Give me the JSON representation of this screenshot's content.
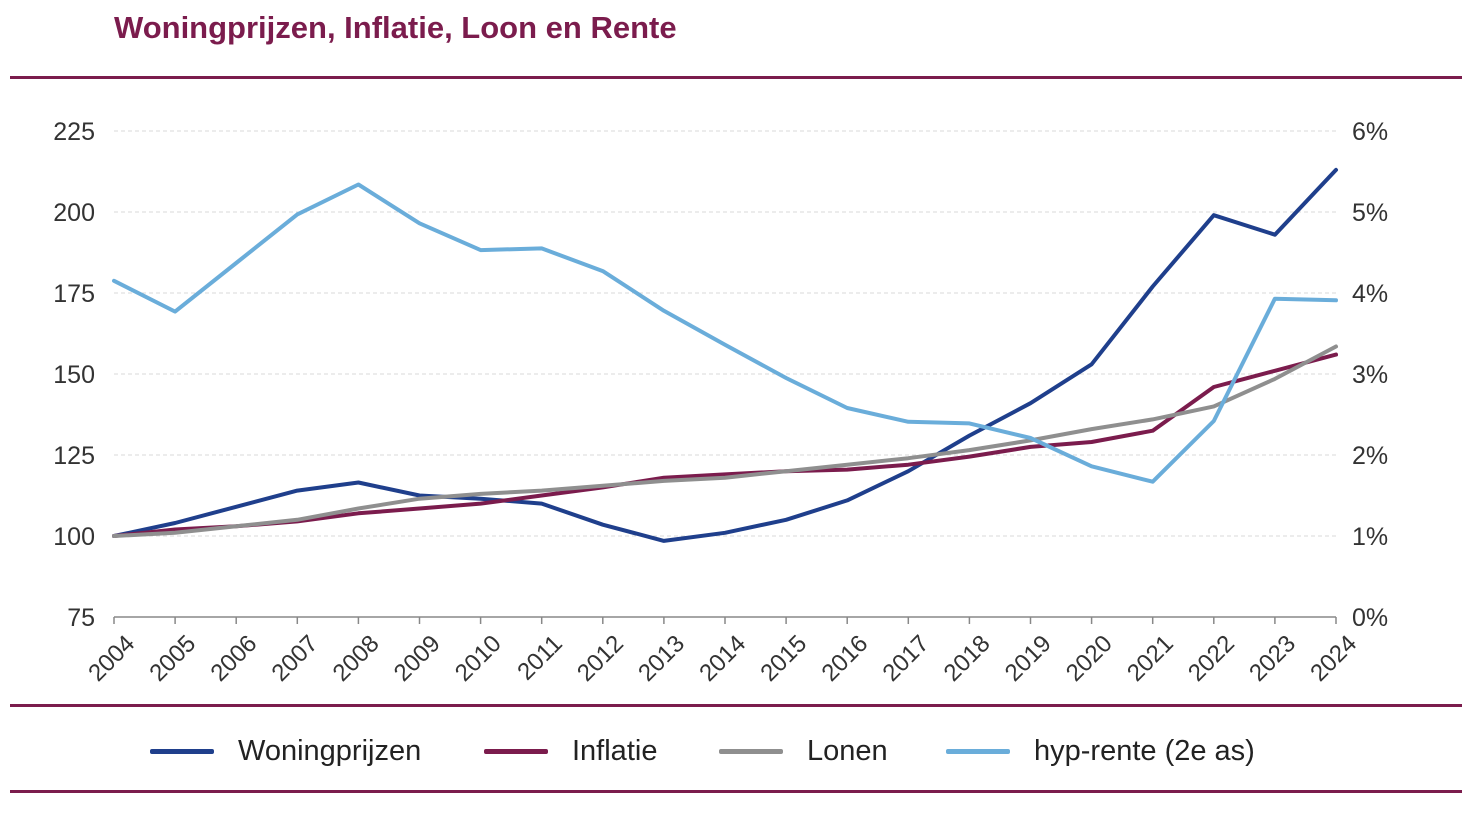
{
  "title": "Woningprijzen, Inflatie, Loon en Rente",
  "chart_data": {
    "type": "line",
    "title": "Woningprijzen, Inflatie, Loon en Rente",
    "x": [
      "2004",
      "2005",
      "2006",
      "2007",
      "2008",
      "2009",
      "2010",
      "2011",
      "2012",
      "2013",
      "2014",
      "2015",
      "2016",
      "2017",
      "2018",
      "2019",
      "2020",
      "2021",
      "2022",
      "2023",
      "2024"
    ],
    "y_left": {
      "min": 75,
      "max": 225,
      "ticks": [
        75,
        100,
        125,
        150,
        175,
        200,
        225
      ]
    },
    "y_right": {
      "min": 0,
      "max": 6,
      "ticks": [
        0,
        1,
        2,
        3,
        4,
        5,
        6
      ],
      "tick_labels": [
        "0%",
        "1%",
        "2%",
        "3%",
        "4%",
        "5%",
        "6%"
      ]
    },
    "grid": true,
    "legend_position": "bottom",
    "series": [
      {
        "name": "Woningprijzen",
        "axis": "left",
        "color": "#1f3f8c",
        "values": [
          100,
          104,
          109,
          114,
          116.5,
          112.5,
          111.5,
          110,
          103.5,
          98.5,
          101,
          105,
          111,
          120,
          131,
          141,
          153,
          177,
          199,
          193,
          213
        ]
      },
      {
        "name": "Inflatie",
        "axis": "left",
        "color": "#7b1c4d",
        "values": [
          100,
          102,
          103,
          104.5,
          107,
          108.5,
          110,
          112.5,
          115,
          118,
          119,
          120,
          120.5,
          122,
          124.5,
          127.5,
          129,
          132.5,
          146,
          151,
          156
        ]
      },
      {
        "name": "Lonen",
        "axis": "left",
        "color": "#8f8f8f",
        "values": [
          100,
          101,
          103,
          105,
          108.5,
          111.5,
          113,
          114,
          115.5,
          117,
          118,
          120,
          122,
          124,
          126.5,
          129.5,
          133,
          136,
          140,
          148.5,
          158.5
        ]
      },
      {
        "name": "hyp-rente (2e as)",
        "axis": "right",
        "color": "#6aadda",
        "values": [
          4.15,
          3.77,
          4.37,
          4.97,
          5.34,
          4.86,
          4.53,
          4.55,
          4.27,
          3.78,
          3.36,
          2.95,
          2.58,
          2.41,
          2.39,
          2.21,
          1.86,
          1.67,
          2.42,
          3.93,
          3.91
        ]
      }
    ]
  }
}
